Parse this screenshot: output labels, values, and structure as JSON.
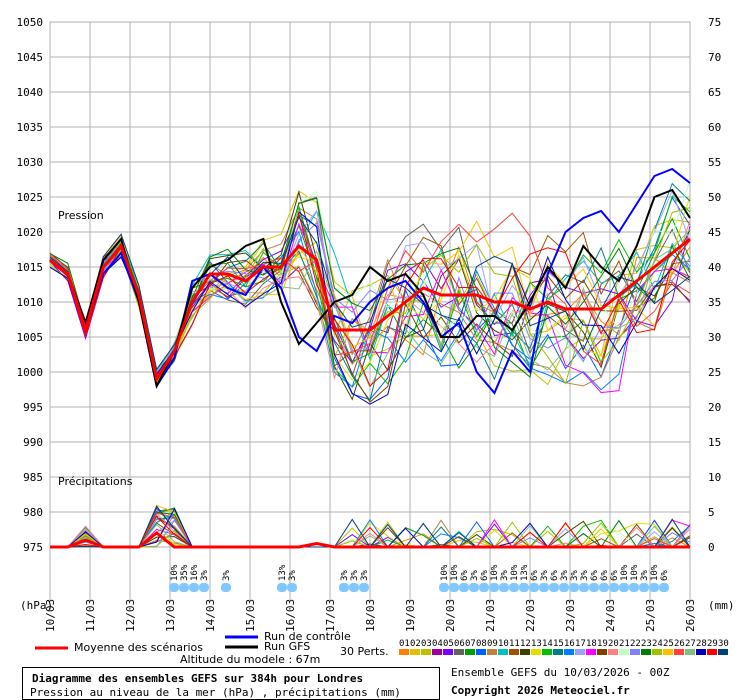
{
  "chart_data": {
    "type": "line",
    "title": "Diagramme des ensembles GEFS sur 384h pour Londres",
    "subtitle": "Pression au niveau de la mer (hPa) , précipitations (mm)",
    "left_axis_unit": "(hPa)",
    "right_axis_unit": "(mm)",
    "pressure_label": "Pression",
    "precip_label": "Précipitations",
    "ylim_pressure": [
      975,
      1050
    ],
    "yticks_pressure": [
      975,
      980,
      985,
      990,
      995,
      1000,
      1005,
      1010,
      1015,
      1020,
      1025,
      1030,
      1035,
      1040,
      1045,
      1050
    ],
    "ylim_precip": [
      0,
      75
    ],
    "yticks_precip": [
      0,
      5,
      10,
      15,
      20,
      25,
      30,
      35,
      40,
      45,
      50,
      55,
      60,
      65,
      70,
      75
    ],
    "x_labels": [
      "10/03",
      "11/03",
      "12/03",
      "13/03",
      "14/03",
      "15/03",
      "16/03",
      "17/03",
      "18/03",
      "19/03",
      "20/03",
      "21/03",
      "22/03",
      "23/03",
      "24/03",
      "25/03",
      "26/03"
    ],
    "mean_pressure": [
      1016,
      1014,
      1006,
      1015,
      1018,
      1011,
      999,
      1003,
      1010,
      1014,
      1014,
      1013,
      1015,
      1015,
      1018,
      1016,
      1006,
      1006,
      1006,
      1008,
      1010,
      1012,
      1011,
      1011,
      1011,
      1010,
      1010,
      1009,
      1010,
      1009,
      1009,
      1009,
      1011,
      1013,
      1015,
      1017,
      1019
    ],
    "control_pressure": [
      1016,
      1014,
      1007,
      1014,
      1017,
      1010,
      998,
      1002,
      1013,
      1014,
      1012,
      1011,
      1015,
      1012,
      1005,
      1003,
      1008,
      1007,
      1010,
      1012,
      1013,
      1010,
      1005,
      1007,
      1000,
      997,
      1003,
      1000,
      1014,
      1020,
      1022,
      1023,
      1020,
      1024,
      1028,
      1029,
      1027
    ],
    "gfs_pressure": [
      1016,
      1014,
      1007,
      1016,
      1019,
      1010,
      998,
      1003,
      1012,
      1015,
      1016,
      1018,
      1019,
      1010,
      1004,
      1007,
      1010,
      1011,
      1015,
      1013,
      1014,
      1011,
      1005,
      1005,
      1008,
      1008,
      1006,
      1010,
      1015,
      1012,
      1018,
      1015,
      1013,
      1018,
      1025,
      1026,
      1022
    ],
    "mean_precip": [
      0,
      0,
      1,
      0,
      0,
      0,
      2,
      0,
      0,
      0,
      0,
      0,
      0,
      0,
      0,
      0.5,
      0,
      0,
      0,
      0,
      0,
      0,
      0,
      0,
      0,
      0,
      0,
      0,
      0,
      0,
      0,
      0,
      0,
      0,
      0,
      0,
      0
    ],
    "precip_percentages": [
      {
        "date_index": 3.1,
        "pct": "10%"
      },
      {
        "date_index": 3.35,
        "pct": "35%"
      },
      {
        "date_index": 3.6,
        "pct": "16%"
      },
      {
        "date_index": 3.85,
        "pct": "3%"
      },
      {
        "date_index": 4.4,
        "pct": "3%"
      },
      {
        "date_index": 5.8,
        "pct": "13%"
      },
      {
        "date_index": 6.05,
        "pct": "3%"
      },
      {
        "date_index": 7.35,
        "pct": "3%"
      },
      {
        "date_index": 7.6,
        "pct": "3%"
      },
      {
        "date_index": 7.85,
        "pct": "3%"
      },
      {
        "date_index": 9.85,
        "pct": "10%"
      },
      {
        "date_index": 10.1,
        "pct": "10%"
      },
      {
        "date_index": 10.35,
        "pct": "6%"
      },
      {
        "date_index": 10.6,
        "pct": "3%"
      },
      {
        "date_index": 10.85,
        "pct": "6%"
      },
      {
        "date_index": 11.1,
        "pct": "10%"
      },
      {
        "date_index": 11.35,
        "pct": "3%"
      },
      {
        "date_index": 11.6,
        "pct": "10%"
      },
      {
        "date_index": 11.85,
        "pct": "13%"
      },
      {
        "date_index": 12.1,
        "pct": "6%"
      },
      {
        "date_index": 12.35,
        "pct": "3%"
      },
      {
        "date_index": 12.6,
        "pct": "6%"
      },
      {
        "date_index": 12.85,
        "pct": "3%"
      },
      {
        "date_index": 13.1,
        "pct": "3%"
      },
      {
        "date_index": 13.35,
        "pct": "3%"
      },
      {
        "date_index": 13.6,
        "pct": "6%"
      },
      {
        "date_index": 13.85,
        "pct": "6%"
      },
      {
        "date_index": 14.1,
        "pct": "6%"
      },
      {
        "date_index": 14.35,
        "pct": "10%"
      },
      {
        "date_index": 14.6,
        "pct": "10%"
      },
      {
        "date_index": 14.85,
        "pct": "3%"
      },
      {
        "date_index": 15.1,
        "pct": "10%"
      },
      {
        "date_index": 15.35,
        "pct": "6%"
      }
    ],
    "legend": {
      "mean_label": "Moyenne des scénarios",
      "control_label": "Run de contrôle",
      "gfs_label": "Run GFS",
      "perts_label": "30 Perts.",
      "altitude_label": "Altitude du modele : 67m"
    },
    "perturbation_ids": [
      "01",
      "02",
      "03",
      "04",
      "05",
      "06",
      "07",
      "08",
      "09",
      "10",
      "11",
      "12",
      "13",
      "14",
      "15",
      "16",
      "17",
      "18",
      "19",
      "20",
      "21",
      "22",
      "23",
      "24",
      "25",
      "26",
      "27",
      "28",
      "29",
      "30"
    ],
    "perturbation_colors": [
      "#ff8000",
      "#e0c000",
      "#c0c000",
      "#a000a0",
      "#8000ff",
      "#606060",
      "#00a000",
      "#0060ff",
      "#c08040",
      "#00c0c0",
      "#a05000",
      "#404000",
      "#e0e000",
      "#00c000",
      "#008080",
      "#0080ff",
      "#a0a0ff",
      "#ff00ff",
      "#804000",
      "#ff8080",
      "#c0ffc0",
      "#8080ff",
      "#008000",
      "#a0c000",
      "#ffc000",
      "#ff4040",
      "#80c080",
      "#0000c0",
      "#ff0000",
      "#004080"
    ],
    "colors": {
      "mean": "#ff0000",
      "control": "#0000ff",
      "gfs": "#000000",
      "grid": "#b0b0b0",
      "drops": "#80c8ff"
    }
  },
  "info": {
    "ensemble_label": "Ensemble GEFS du 10/03/2026 - 00Z",
    "copyright": "Copyright 2026 Meteociel.fr"
  }
}
